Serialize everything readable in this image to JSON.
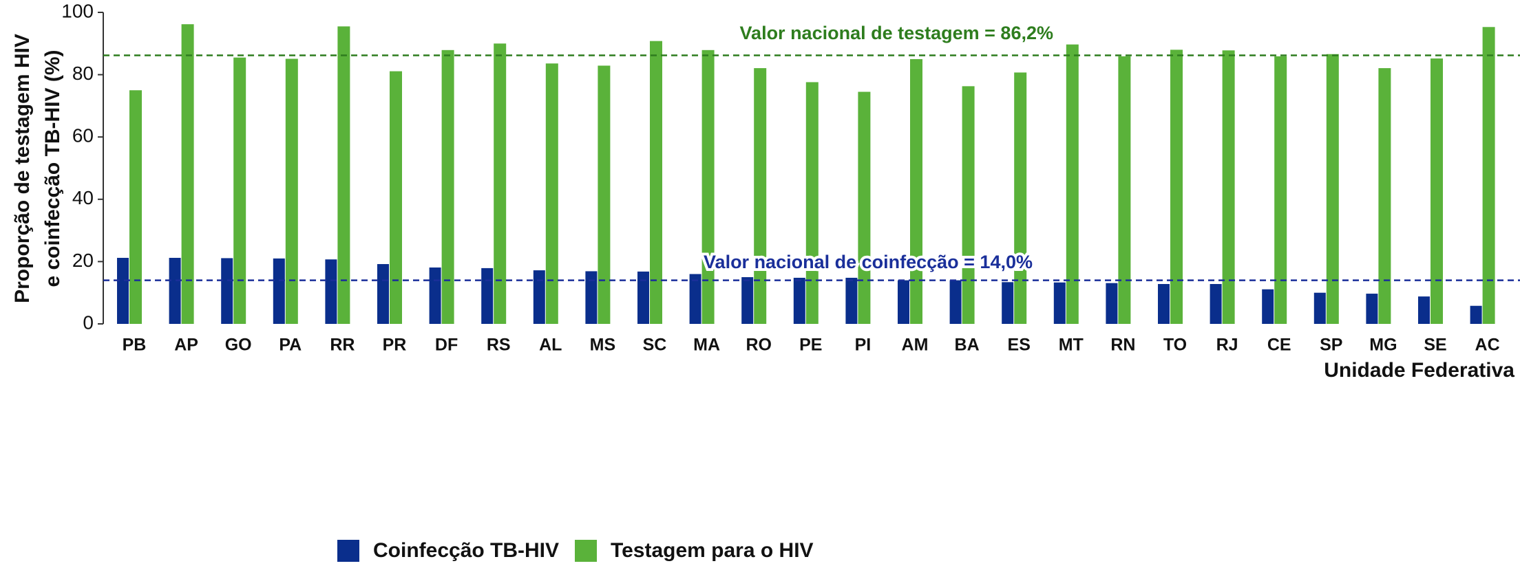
{
  "chart_data": {
    "type": "bar",
    "ylabel": [
      "Proporção de testagem HIV",
      "e coinfecção TB-HIV (%)"
    ],
    "xlabel": "Unidade Federativa",
    "categories": [
      "PB",
      "AP",
      "GO",
      "PA",
      "RR",
      "PR",
      "DF",
      "RS",
      "AL",
      "MS",
      "SC",
      "MA",
      "RO",
      "PE",
      "PI",
      "AM",
      "BA",
      "ES",
      "MT",
      "RN",
      "TO",
      "RJ",
      "CE",
      "SP",
      "MG",
      "SE",
      "AC"
    ],
    "series": [
      {
        "name": "Coinfecção TB-HIV",
        "color": "#0a2e8c",
        "values": [
          21.2,
          21.2,
          21.1,
          21.0,
          20.7,
          19.2,
          18.1,
          17.9,
          17.2,
          16.9,
          16.8,
          16.0,
          15.0,
          14.8,
          14.8,
          14.0,
          14.0,
          13.4,
          13.3,
          13.1,
          12.8,
          12.8,
          11.1,
          10.0,
          9.7,
          8.8,
          5.8
        ]
      },
      {
        "name": "Testagem para o HIV",
        "color": "#5ab23a",
        "values": [
          75.0,
          96.2,
          85.5,
          85.1,
          95.5,
          81.1,
          87.9,
          90.0,
          83.6,
          82.9,
          90.8,
          87.9,
          82.1,
          77.6,
          74.5,
          85.0,
          76.3,
          80.7,
          89.7,
          85.9,
          88.0,
          87.8,
          85.9,
          86.6,
          82.1,
          85.2,
          95.3
        ]
      }
    ],
    "reference_lines": [
      {
        "value": 86.2,
        "label": "Valor nacional de testagem = 86,2%",
        "color": "#2e7d1e"
      },
      {
        "value": 14.0,
        "label": "Valor nacional de coinfecção = 14,0%",
        "color": "#1a2f9a"
      }
    ],
    "ylim": [
      0,
      100
    ],
    "yticks": [
      0,
      20,
      40,
      60,
      80,
      100
    ],
    "grid": false,
    "legend": "bottom"
  }
}
